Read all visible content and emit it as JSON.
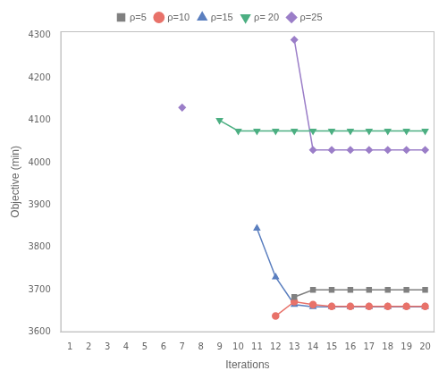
{
  "chart_data": {
    "type": "line",
    "title": "",
    "x_label": "Iterations",
    "y_label": "Objective (min)",
    "xlim": [
      0.5,
      20.5
    ],
    "ylim": [
      3600,
      4310
    ],
    "xticks": [
      1,
      2,
      3,
      4,
      5,
      6,
      7,
      8,
      9,
      10,
      11,
      12,
      13,
      14,
      15,
      16,
      17,
      18,
      19,
      20
    ],
    "yticks": [
      3600,
      3700,
      3800,
      3900,
      4000,
      4100,
      4200,
      4300
    ],
    "grid": false,
    "legend": "top",
    "series": [
      {
        "name": "ρ=5",
        "color": "#808080",
        "marker": "square",
        "x": [
          13,
          14,
          15,
          16,
          17,
          18,
          19,
          20
        ],
        "values": [
          3683,
          3700,
          3700,
          3700,
          3700,
          3700,
          3700,
          3700
        ]
      },
      {
        "name": "ρ=10",
        "color": "#E8726A",
        "marker": "circle",
        "x": [
          12,
          13,
          14,
          15,
          16,
          17,
          18,
          19,
          20
        ],
        "values": [
          3638,
          3672,
          3665,
          3661,
          3661,
          3661,
          3661,
          3661,
          3661
        ]
      },
      {
        "name": "ρ=15",
        "color": "#5B7FBF",
        "marker": "triangle-up",
        "x": [
          11,
          12,
          13,
          14,
          15,
          16,
          17,
          18,
          19,
          20
        ],
        "values": [
          3845,
          3730,
          3665,
          3660,
          3660,
          3660,
          3660,
          3660,
          3660,
          3660
        ]
      },
      {
        "name": "ρ= 20",
        "color": "#4CAF82",
        "marker": "triangle-down",
        "x": [
          9,
          10,
          11,
          12,
          13,
          14,
          15,
          16,
          17,
          18,
          19,
          20
        ],
        "values": [
          4100,
          4075,
          4075,
          4075,
          4075,
          4075,
          4075,
          4075,
          4075,
          4075,
          4075,
          4075
        ]
      },
      {
        "name": "ρ=25",
        "color": "#9B7EC8",
        "marker": "diamond",
        "x": [
          7,
          null,
          13,
          14,
          15,
          16,
          17,
          18,
          19,
          20
        ],
        "values": [
          4130,
          null,
          4290,
          4030,
          4030,
          4030,
          4030,
          4030,
          4030,
          4030
        ]
      }
    ]
  }
}
